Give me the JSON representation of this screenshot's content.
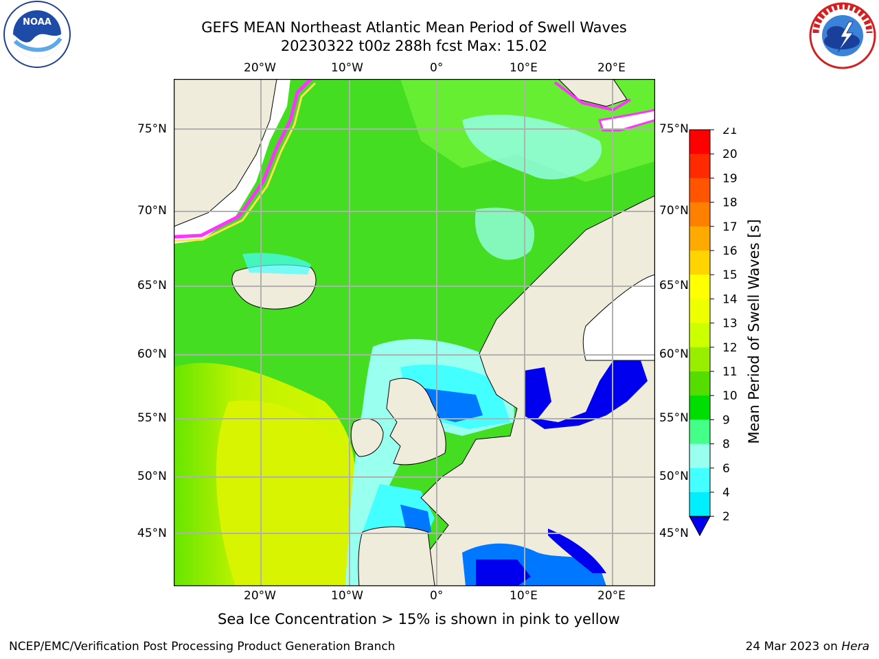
{
  "header": {
    "title_line1": "GEFS MEAN Northeast Atlantic Mean Period of Swell Waves",
    "title_line2": "20230322 t00z 288h fcst   Max: 15.02"
  },
  "logos": {
    "left": "NOAA",
    "left_ring_text": "NATIONAL OCEANIC AND ATMOSPHERIC ADMINISTRATION · U.S. DEPARTMENT OF COMMERCE",
    "right_ring_text": "NATIONAL WEATHER SERVICE"
  },
  "map": {
    "lon_labels": [
      "20°W",
      "10°W",
      "0°",
      "10°E",
      "20°E"
    ],
    "lat_labels": [
      "75°N",
      "70°N",
      "65°N",
      "60°N",
      "55°N",
      "50°N",
      "45°N"
    ],
    "colors": {
      "land": "#efecdc",
      "ice_pink": "#ff33ff",
      "ice_yellow": "#ffe34d",
      "grid": "#b0b0b0"
    }
  },
  "colorbar": {
    "label": "Mean Period of Swell Waves [s]",
    "ticks": [
      "21",
      "20",
      "19",
      "18",
      "17",
      "16",
      "15",
      "14",
      "13",
      "12",
      "11",
      "10",
      "9",
      "8",
      "6",
      "4",
      "2"
    ],
    "colors": [
      "#ff0000",
      "#ff2a00",
      "#ff5500",
      "#ff8000",
      "#ffaa00",
      "#ffd400",
      "#ffff00",
      "#eeff00",
      "#ccff00",
      "#99ee00",
      "#55dd00",
      "#00dd00",
      "#44ff88",
      "#99ffee",
      "#44ffff",
      "#00eeff",
      "#0077ff",
      "#0000ee"
    ]
  },
  "caption": "Sea Ice Concentration > 15% is shown in pink to yellow",
  "footer": {
    "left": "NCEP/EMC/Verification Post Processing Product Generation Branch",
    "right_date": "24 Mar 2023 on ",
    "right_host": "Hera"
  }
}
